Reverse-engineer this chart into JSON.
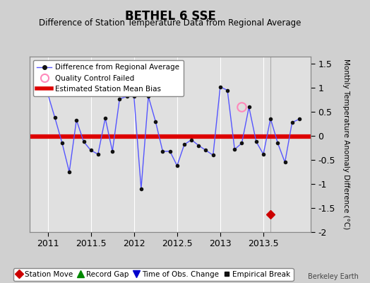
{
  "title": "BETHEL 6 SSE",
  "subtitle": "Difference of Station Temperature Data from Regional Average",
  "ylabel_right": "Monthly Temperature Anomaly Difference (°C)",
  "watermark": "Berkeley Earth",
  "xlim": [
    2010.79,
    2014.05
  ],
  "ylim": [
    -2.0,
    1.65
  ],
  "yticks": [
    -2.0,
    -1.5,
    -1.0,
    -0.5,
    0.0,
    0.5,
    1.0,
    1.5
  ],
  "xticks": [
    2011,
    2011.5,
    2012,
    2012.5,
    2013,
    2013.5
  ],
  "mean_bias": -0.02,
  "bias_color": "#dd0000",
  "line_color": "#5555ff",
  "line_data_x": [
    2011.0,
    2011.083,
    2011.167,
    2011.25,
    2011.333,
    2011.417,
    2011.5,
    2011.583,
    2011.667,
    2011.75,
    2011.833,
    2011.917,
    2012.0,
    2012.083,
    2012.167,
    2012.25,
    2012.333,
    2012.417,
    2012.5,
    2012.583,
    2012.667,
    2012.75,
    2012.833,
    2012.917,
    2013.0,
    2013.083,
    2013.167,
    2013.25,
    2013.333,
    2013.417,
    2013.5,
    2013.583,
    2013.667,
    2013.75,
    2013.833,
    2013.917
  ],
  "line_data_y": [
    0.88,
    0.38,
    -0.15,
    -0.75,
    0.33,
    -0.12,
    -0.3,
    -0.38,
    0.37,
    -0.32,
    0.77,
    0.82,
    0.82,
    -1.1,
    0.82,
    0.3,
    -0.32,
    -0.32,
    -0.62,
    -0.18,
    -0.08,
    -0.2,
    -0.3,
    -0.4,
    1.02,
    0.95,
    -0.28,
    -0.15,
    0.6,
    -0.12,
    -0.38,
    0.36,
    -0.15,
    -0.55,
    0.28,
    0.35
  ],
  "qc_fail_x": [
    2013.25
  ],
  "qc_fail_y": [
    0.6
  ],
  "station_move_x": [
    2013.583
  ],
  "station_move_y": [
    -1.63
  ],
  "vertical_line_x": 2013.583,
  "bg_color": "#e0e0e0",
  "grid_color": "#ffffff",
  "fig_bg_color": "#d0d0d0"
}
